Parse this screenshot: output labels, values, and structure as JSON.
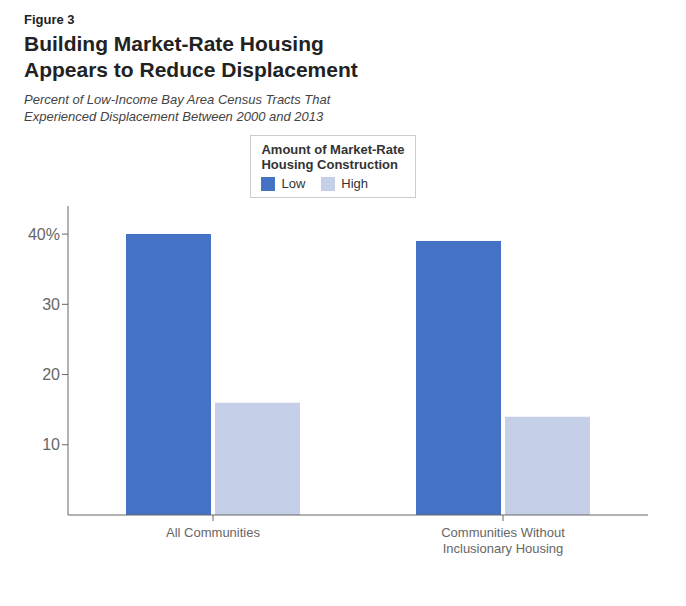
{
  "chart_data": {
    "type": "bar",
    "annotations": [
      "Figure 3"
    ],
    "title": "Building Market-Rate Housing\nAppears to Reduce Displacement",
    "subtitle": "Percent of Low-Income Bay Area Census Tracts That\nExperienced Displacement Between 2000 and 2013",
    "categories": [
      "All Communities",
      "Communities Without\nInclusionary Housing"
    ],
    "series": [
      {
        "name": "Low",
        "color": "#4472C4",
        "values": [
          40,
          39
        ]
      },
      {
        "name": "High",
        "color": "#C5D0E8",
        "values": [
          16,
          14
        ]
      }
    ],
    "legend_title": "Amount of Market-Rate\nHousing Construction",
    "legend": "top",
    "ylim": [
      0,
      44
    ],
    "yticks": [
      10,
      20,
      30,
      {
        "value": 40,
        "label": "40%"
      }
    ],
    "grid": false
  }
}
